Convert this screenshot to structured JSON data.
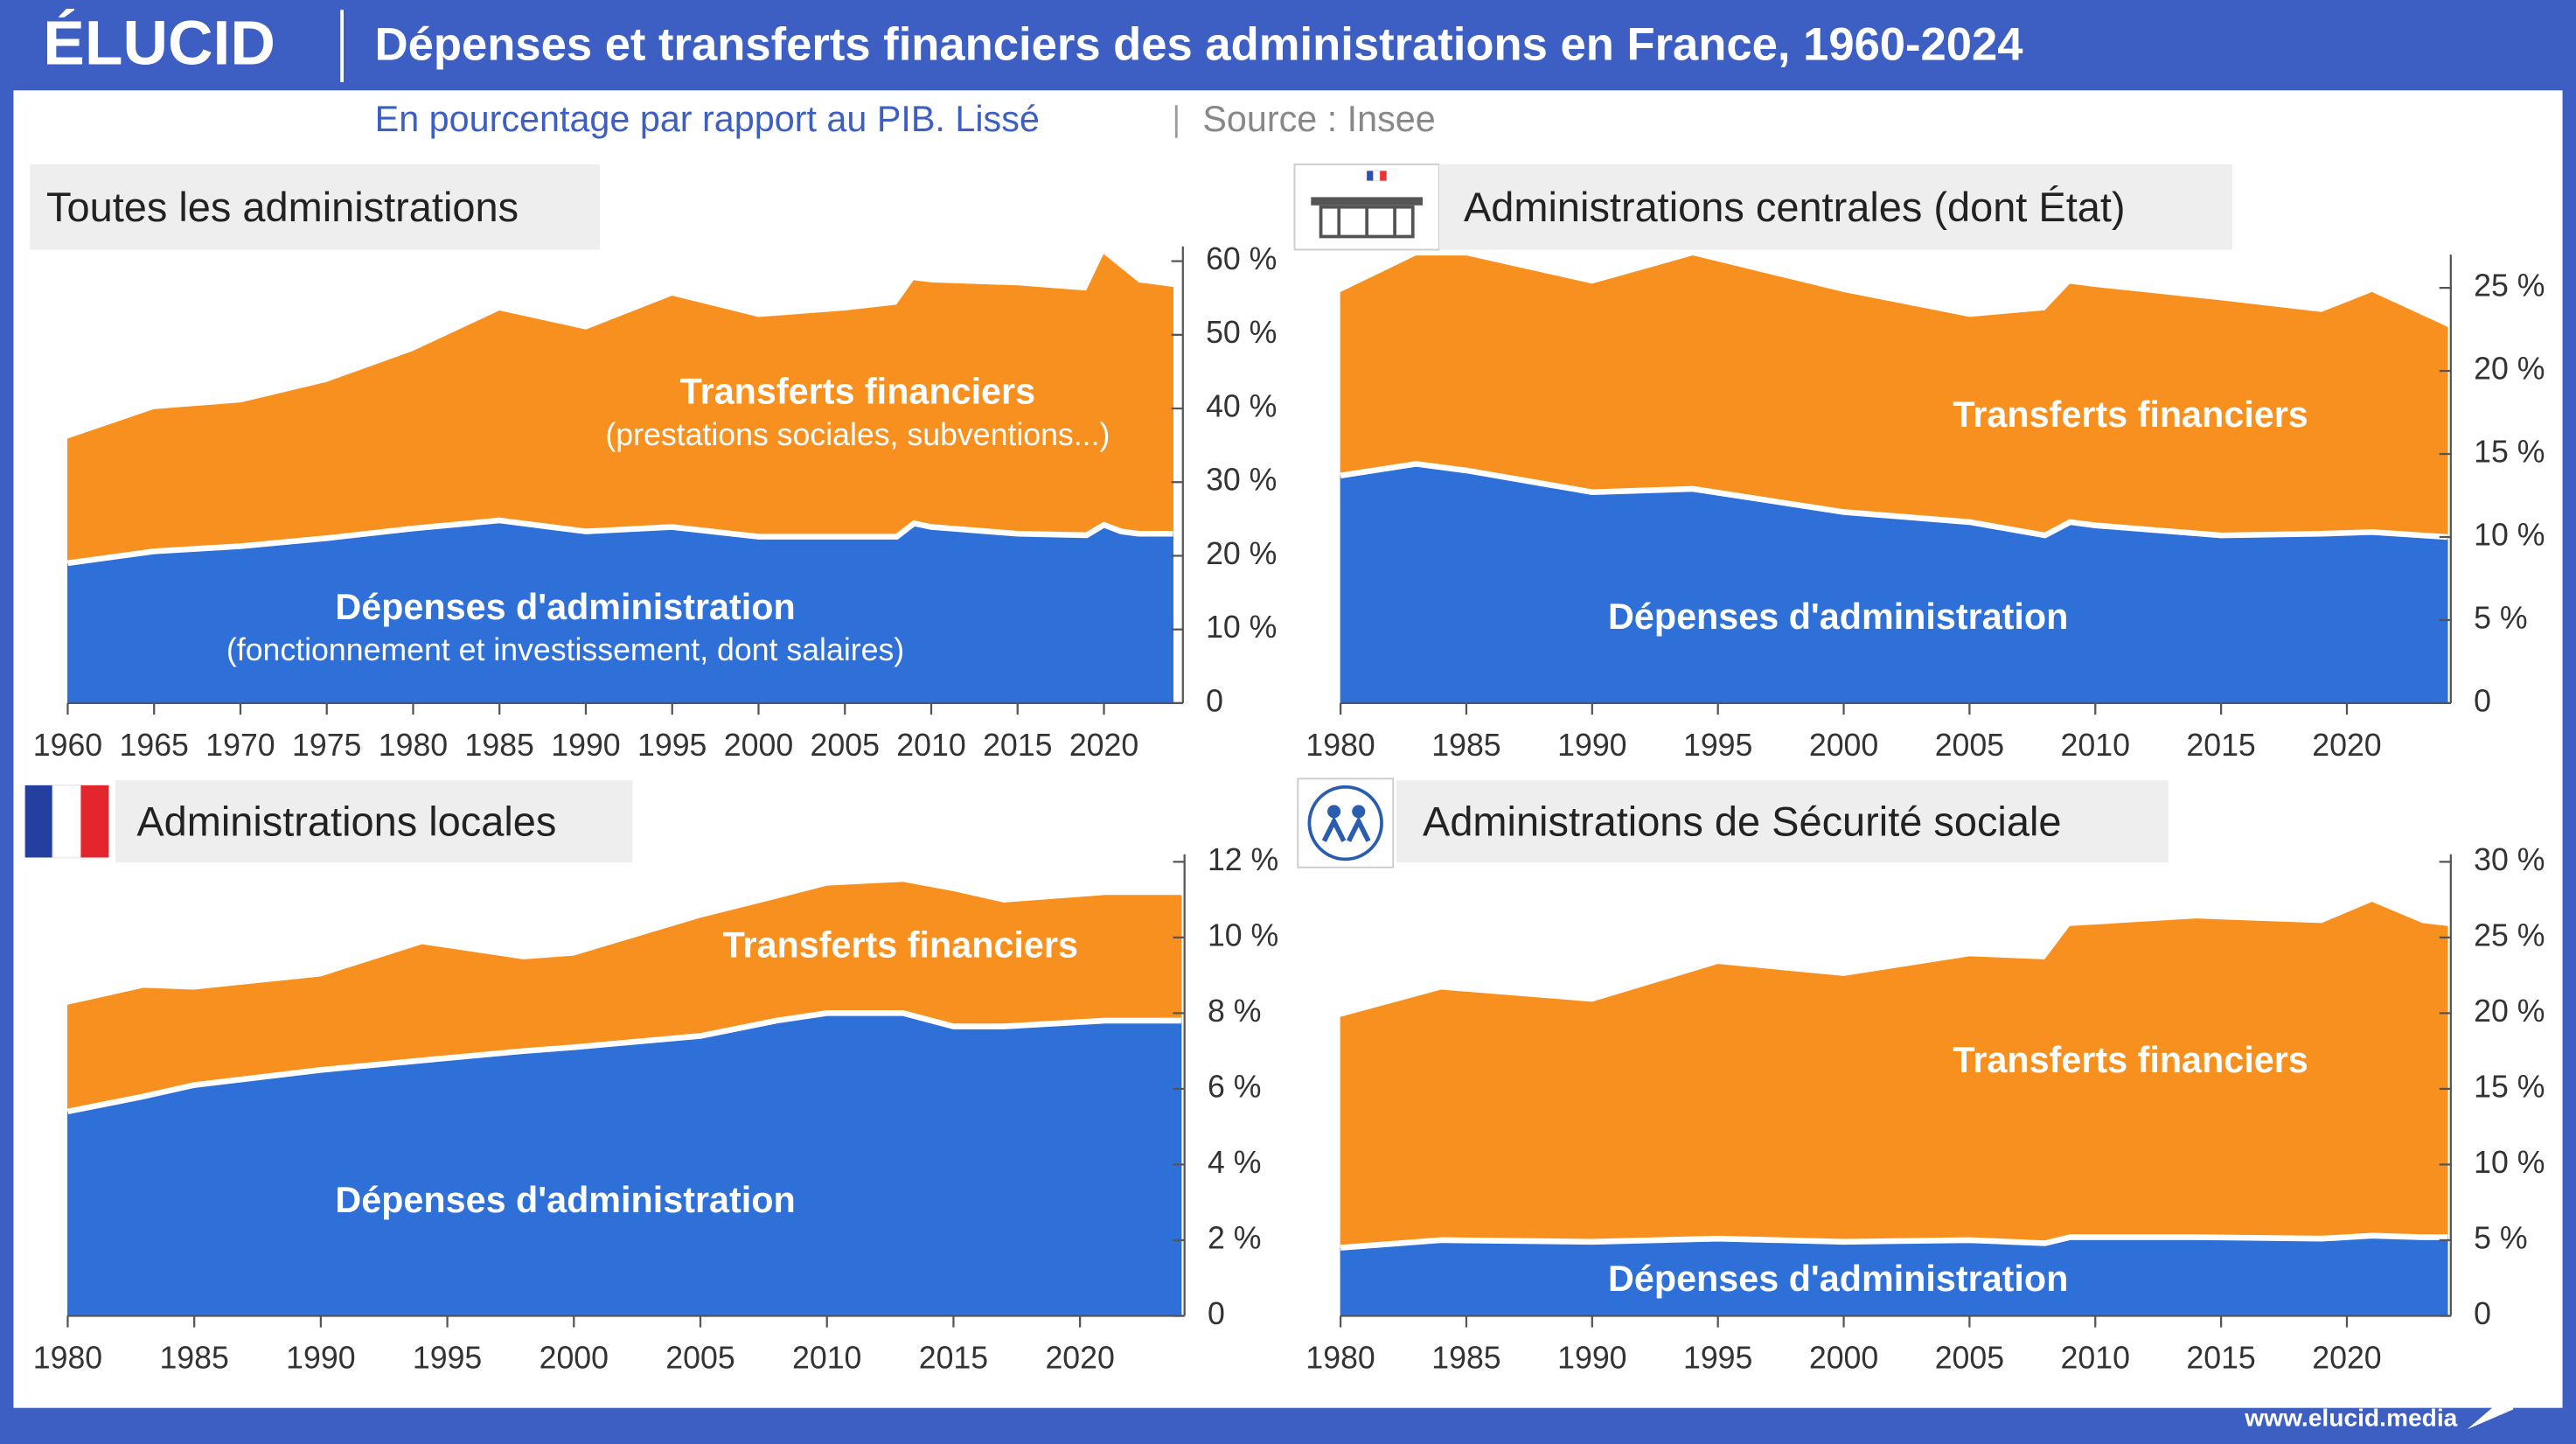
{
  "brand": "ÉLUCID",
  "title": "Dépenses et transferts financiers des administrations en France, 1960-2024",
  "subtitle": "En pourcentage par rapport au PIB. Lissé",
  "source": "Source : Insee",
  "footer": "www.elucid.media",
  "chart_data": [
    {
      "type": "area",
      "stacked": true,
      "title": "Toutes les administrations",
      "x": [
        1960,
        1965,
        1970,
        1975,
        1980,
        1985,
        1990,
        1995,
        2000,
        2005,
        2008,
        2009,
        2010,
        2015,
        2019,
        2020,
        2021,
        2022,
        2024
      ],
      "series": [
        {
          "name": "Dépenses d'administration",
          "sublabel": "(fonctionnement et investissement, dont salaires)",
          "color": "#2e6fd8",
          "values": [
            19.0,
            20.6,
            21.3,
            22.4,
            23.7,
            24.8,
            23.3,
            23.9,
            22.6,
            22.6,
            22.6,
            24.4,
            23.9,
            23.0,
            22.8,
            24.2,
            23.3,
            23.0,
            23.0
          ]
        },
        {
          "name": "Transferts financiers",
          "sublabel": "(prestations sociales, subventions...)",
          "color": "#f7901e",
          "values": [
            16.8,
            19.2,
            19.4,
            21.1,
            24.0,
            28.4,
            27.3,
            31.3,
            29.7,
            30.6,
            31.4,
            32.9,
            33.1,
            33.6,
            33.1,
            36.6,
            35.6,
            34.0,
            33.4
          ]
        }
      ],
      "xlim": [
        1960,
        2024
      ],
      "xticks": [
        1960,
        1965,
        1970,
        1975,
        1980,
        1985,
        1990,
        1995,
        2000,
        2005,
        2010,
        2015,
        2020
      ],
      "ylim": [
        0,
        62
      ],
      "yticks": [
        0,
        {
          "value": 10,
          "label": "10 %"
        },
        {
          "value": 20,
          "label": "20 %"
        },
        {
          "value": 30,
          "label": "30 %"
        },
        {
          "value": 40,
          "label": "40 %"
        },
        {
          "value": 50,
          "label": "50 %"
        },
        {
          "value": 60,
          "label": "60 %"
        }
      ]
    },
    {
      "type": "area",
      "stacked": true,
      "title": "Administrations centrales (dont État)",
      "x": [
        1980,
        1983,
        1985,
        1990,
        1994,
        2000,
        2005,
        2008,
        2009,
        2010,
        2015,
        2019,
        2021,
        2024
      ],
      "series": [
        {
          "name": "Dépenses d'administration",
          "color": "#2e6fd8",
          "values": [
            13.7,
            14.4,
            14.0,
            12.7,
            12.9,
            11.5,
            10.9,
            10.1,
            10.9,
            10.7,
            10.1,
            10.2,
            10.3,
            10.0
          ]
        },
        {
          "name": "Transferts financiers",
          "color": "#f7901e",
          "values": [
            11.0,
            12.5,
            12.9,
            12.5,
            14.0,
            13.2,
            12.3,
            13.5,
            14.3,
            14.3,
            14.1,
            13.3,
            14.4,
            12.6
          ]
        }
      ],
      "xlim": [
        1980,
        2024
      ],
      "xticks": [
        1980,
        1985,
        1990,
        1995,
        2000,
        2005,
        2010,
        2015,
        2020
      ],
      "ylim": [
        0,
        27
      ],
      "yticks": [
        0,
        {
          "value": 5,
          "label": "5 %"
        },
        {
          "value": 10,
          "label": "10 %"
        },
        {
          "value": 15,
          "label": "15 %"
        },
        {
          "value": 20,
          "label": "20 %"
        },
        {
          "value": 25,
          "label": "25 %"
        }
      ]
    },
    {
      "type": "area",
      "stacked": true,
      "title": "Administrations locales",
      "x": [
        1980,
        1983,
        1985,
        1990,
        1994,
        1998,
        2000,
        2005,
        2008,
        2010,
        2013,
        2015,
        2017,
        2021,
        2024
      ],
      "series": [
        {
          "name": "Dépenses d'administration",
          "color": "#2e6fd8",
          "values": [
            5.4,
            5.8,
            6.1,
            6.5,
            6.75,
            7.0,
            7.1,
            7.4,
            7.8,
            8.0,
            8.0,
            7.65,
            7.65,
            7.8,
            7.8
          ]
        },
        {
          "name": "Transferts financiers",
          "color": "#f7901e",
          "values": [
            2.8,
            2.85,
            2.5,
            2.45,
            3.05,
            2.4,
            2.4,
            3.1,
            3.2,
            3.35,
            3.45,
            3.55,
            3.25,
            3.3,
            3.3
          ]
        }
      ],
      "xlim": [
        1980,
        2024
      ],
      "xticks": [
        1980,
        1985,
        1990,
        1995,
        2000,
        2005,
        2010,
        2015,
        2020
      ],
      "ylim": [
        0,
        12.2
      ],
      "yticks": [
        0,
        {
          "value": 2,
          "label": "2 %"
        },
        {
          "value": 4,
          "label": "4 %"
        },
        {
          "value": 6,
          "label": "6 %"
        },
        {
          "value": 8,
          "label": "8 %"
        },
        {
          "value": 10,
          "label": "10 %"
        },
        {
          "value": 12,
          "label": "12 %"
        }
      ]
    },
    {
      "type": "area",
      "stacked": true,
      "title": "Administrations de Sécurité sociale",
      "x": [
        1980,
        1984,
        1990,
        1995,
        2000,
        2005,
        2008,
        2009,
        2014,
        2019,
        2021,
        2023,
        2024
      ],
      "series": [
        {
          "name": "Dépenses d'administration",
          "color": "#2e6fd8",
          "values": [
            4.5,
            5.0,
            4.9,
            5.1,
            4.9,
            5.0,
            4.8,
            5.2,
            5.2,
            5.1,
            5.3,
            5.2,
            5.2
          ]
        },
        {
          "name": "Transferts financiers",
          "color": "#f7901e",
          "values": [
            15.2,
            16.5,
            15.8,
            18.1,
            17.5,
            18.7,
            18.7,
            20.5,
            21.0,
            20.8,
            22.0,
            20.7,
            20.5
          ]
        }
      ],
      "xlim": [
        1980,
        2024
      ],
      "xticks": [
        1980,
        1985,
        1990,
        1995,
        2000,
        2005,
        2010,
        2015,
        2020
      ],
      "ylim": [
        0,
        30.5
      ],
      "yticks": [
        0,
        {
          "value": 5,
          "label": "5 %"
        },
        {
          "value": 10,
          "label": "10 %"
        },
        {
          "value": 15,
          "label": "15 %"
        },
        {
          "value": 20,
          "label": "20 %"
        },
        {
          "value": 25,
          "label": "25 %"
        },
        {
          "value": 30,
          "label": "30 %"
        }
      ]
    }
  ]
}
